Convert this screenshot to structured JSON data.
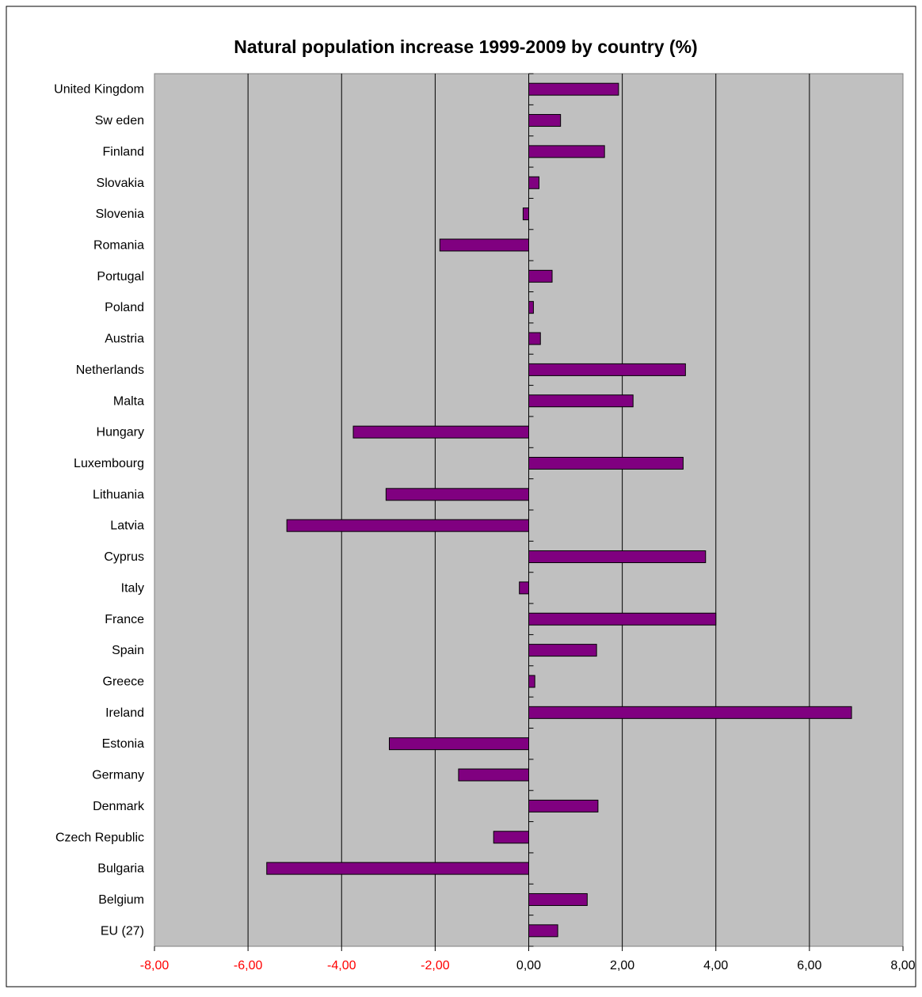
{
  "chart_data": {
    "type": "bar",
    "orientation": "horizontal",
    "title": "Natural population increase 1999-2009  by country (%)",
    "xlabel": "",
    "ylabel": "",
    "xlim": [
      -8,
      8
    ],
    "x_ticks": [
      -8,
      -6,
      -4,
      -2,
      0,
      2,
      4,
      6,
      8
    ],
    "x_tick_labels": [
      "-8,00",
      "-6,00",
      "-4,00",
      "-2,00",
      "0,00",
      "2,00",
      "4,00",
      "6,00",
      "8,00"
    ],
    "grid": "vertical",
    "legend": "none",
    "categories": [
      "United Kingdom",
      "Sw eden",
      "Finland",
      "Slovakia",
      "Slovenia",
      "Romania",
      "Portugal",
      "Poland",
      "Austria",
      "Netherlands",
      "Malta",
      "Hungary",
      "Luxembourg",
      "Lithuania",
      "Latvia",
      "Cyprus",
      "Italy",
      "France",
      "Spain",
      "Greece",
      "Ireland",
      "Estonia",
      "Germany",
      "Denmark",
      "Czech Republic",
      "Bulgaria",
      "Belgium",
      "EU (27)"
    ],
    "values": [
      1.92,
      0.68,
      1.62,
      0.22,
      -0.12,
      -1.9,
      0.5,
      0.1,
      0.25,
      3.35,
      2.23,
      -3.75,
      3.3,
      -3.05,
      -5.17,
      3.78,
      -0.2,
      4.0,
      1.45,
      0.13,
      6.9,
      -2.98,
      -1.5,
      1.48,
      -0.75,
      -5.6,
      1.25,
      0.62
    ],
    "colors": {
      "bar_fill": "#800080",
      "plot_bg": "#C0C0C0",
      "negative_tick": "#FF0000",
      "positive_tick": "#000000"
    }
  }
}
